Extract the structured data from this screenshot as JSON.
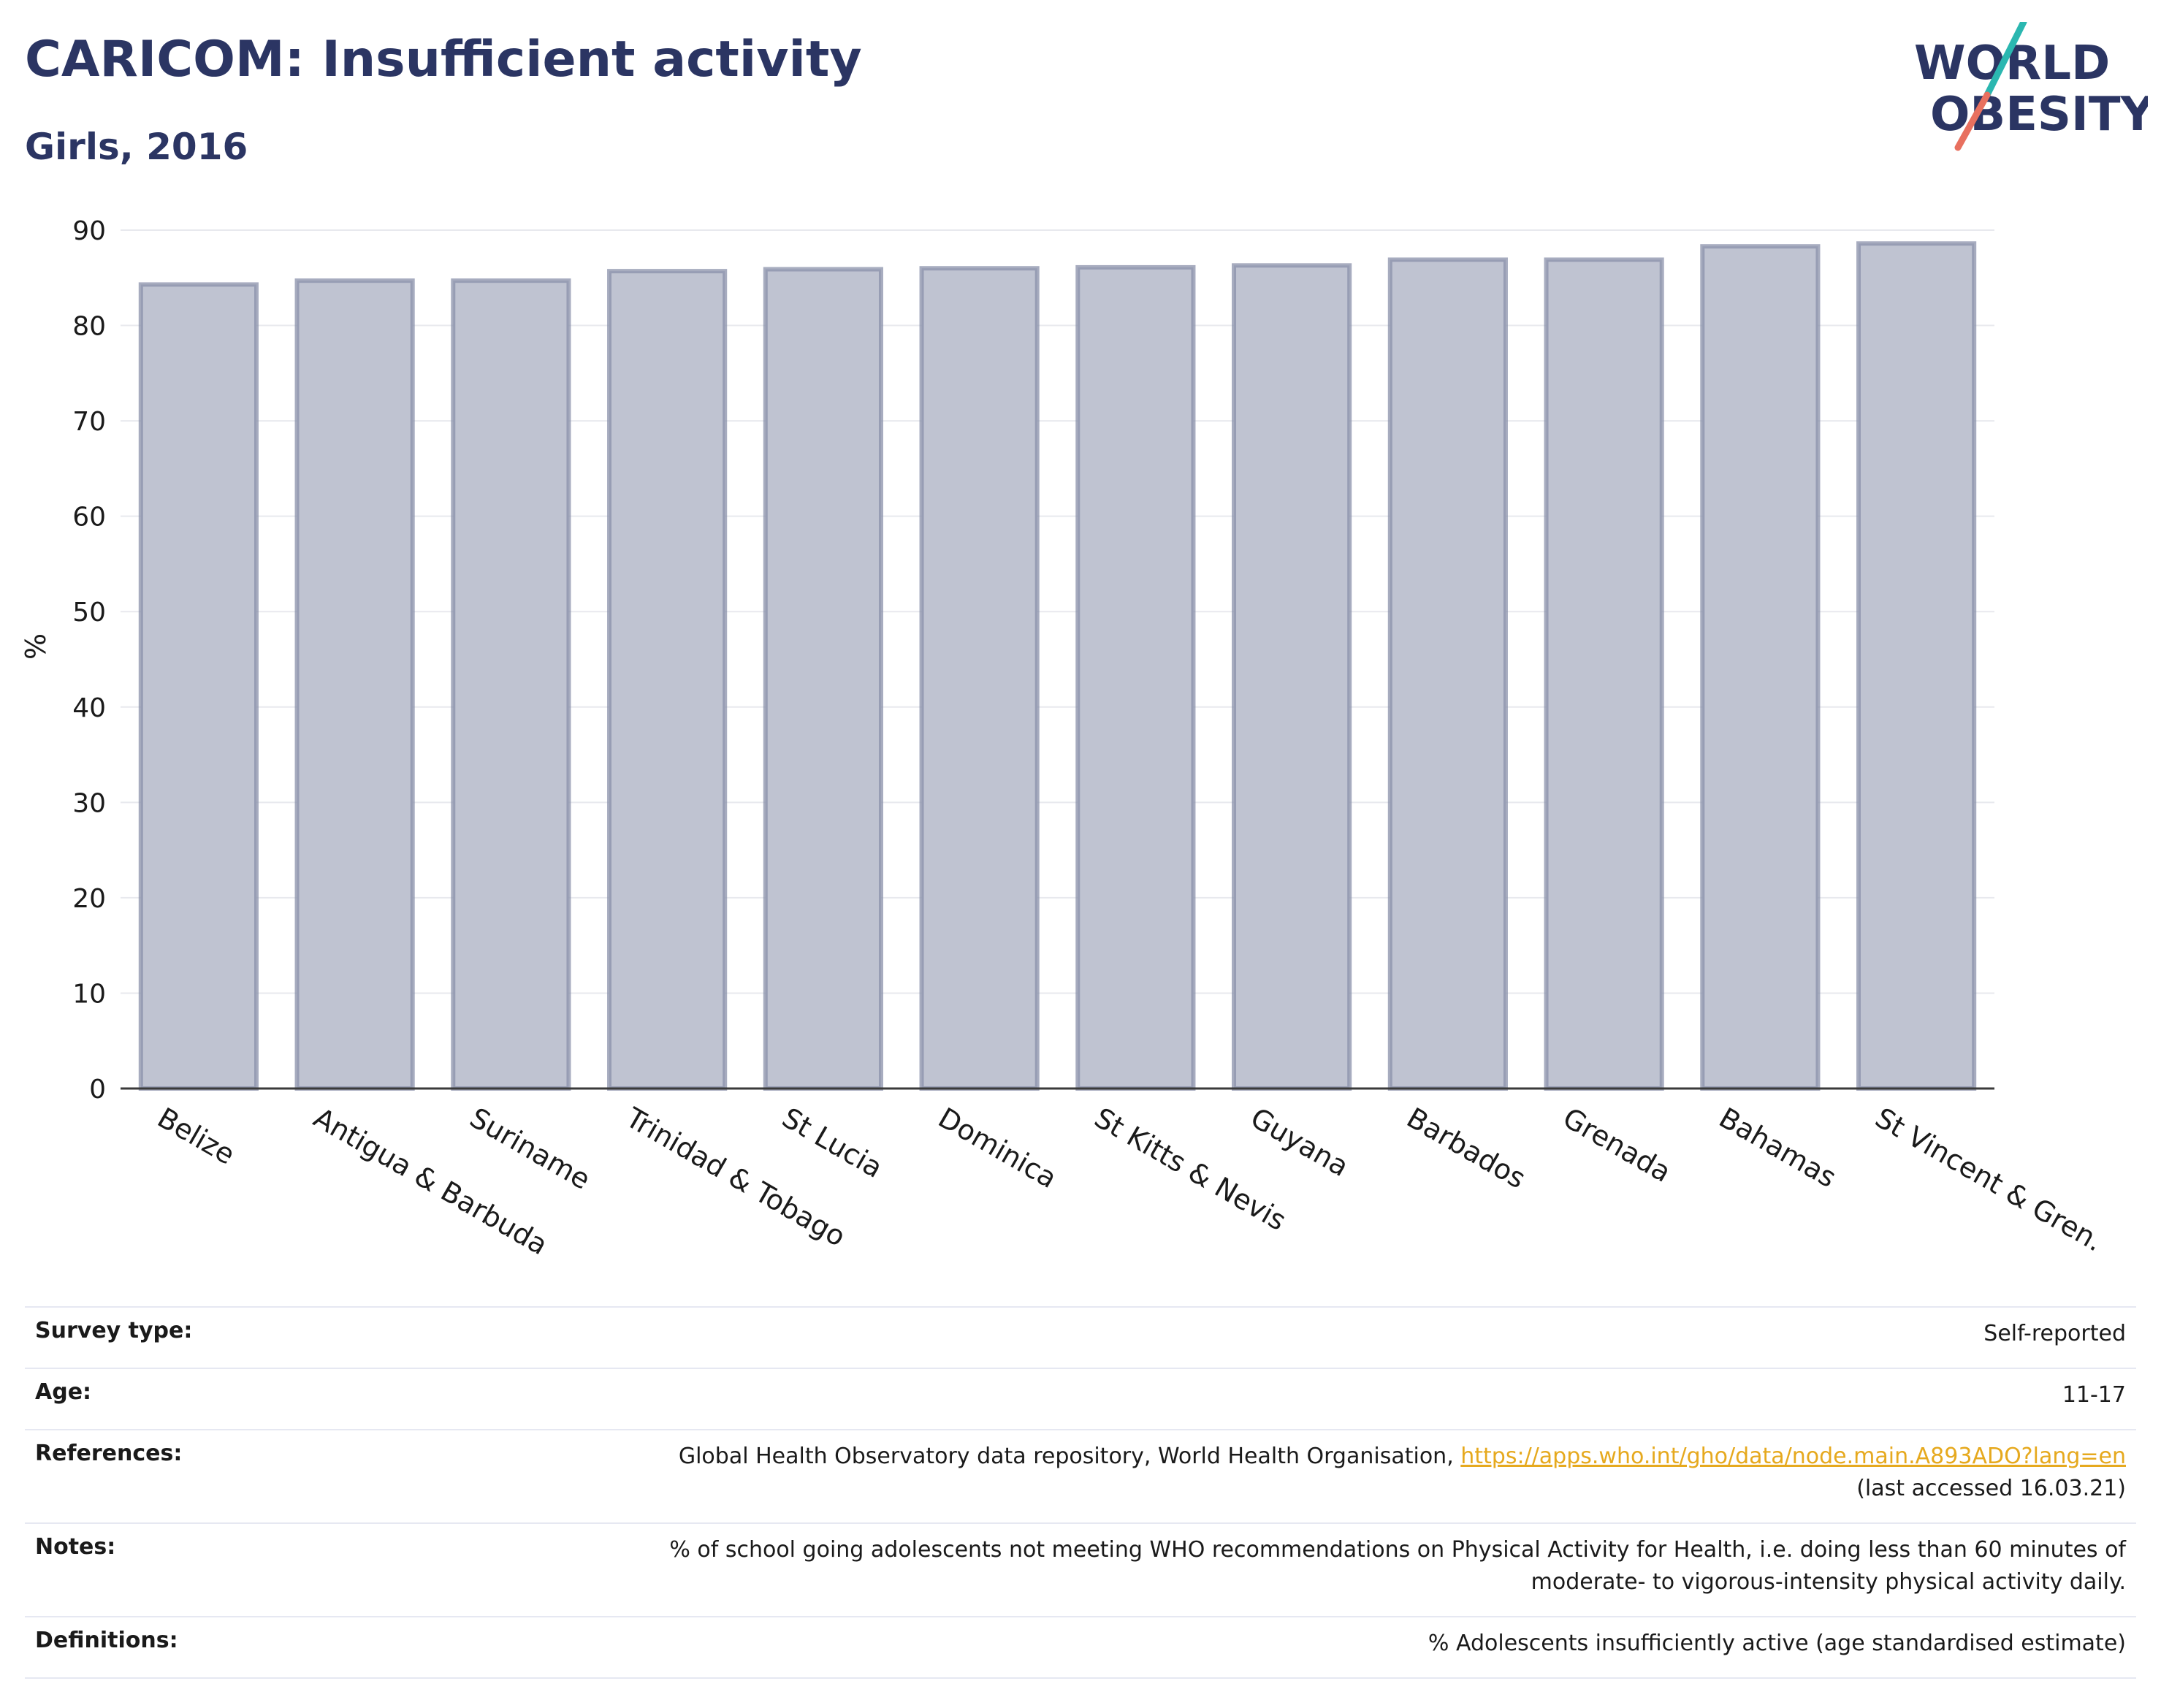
{
  "header": {
    "title": "CARICOM: Insufficient activity",
    "subtitle": "Girls, 2016"
  },
  "logo": {
    "line1": "WORLD",
    "line2": "OBESITY",
    "color_text": "#2b3563",
    "color_slash_top": "#2bb7b0",
    "color_slash_bottom": "#e8705f"
  },
  "chart_data": {
    "type": "bar",
    "title": "CARICOM: Insufficient activity",
    "subtitle": "Girls, 2016",
    "categories": [
      "Belize",
      "Antigua & Barbuda",
      "Suriname",
      "Trinidad & Tobago",
      "St Lucia",
      "Dominica",
      "St Kitts & Nevis",
      "Guyana",
      "Barbados",
      "Grenada",
      "Bahamas",
      "St Vincent & Gren."
    ],
    "values": [
      84.3,
      84.7,
      84.7,
      85.7,
      85.9,
      86.0,
      86.1,
      86.3,
      86.9,
      86.9,
      88.3,
      88.6
    ],
    "xlabel": "",
    "ylabel": "%",
    "ylim": [
      0,
      90
    ],
    "yticks": [
      0,
      10,
      20,
      30,
      40,
      50,
      60,
      70,
      80,
      90
    ],
    "grid": true,
    "legend": "none",
    "bar_fill": "#bfc3d1",
    "bar_stroke": "#8a90aa"
  },
  "meta": {
    "survey_type_label": "Survey type:",
    "survey_type_value": "Self-reported",
    "age_label": "Age:",
    "age_value": "11-17",
    "references_label": "References:",
    "references_text": "Global Health Observatory data repository, World Health Organisation, ",
    "references_link": "https://apps.who.int/gho/data/node.main.A893ADO?lang=en",
    "references_accessed": "(last accessed 16.03.21)",
    "notes_label": "Notes:",
    "notes_line1": "% of school going adolescents not meeting WHO recommendations on Physical Activity for Health, i.e. doing less than 60 minutes of",
    "notes_line2": "moderate- to vigorous-intensity physical activity daily.",
    "definitions_label": "Definitions:",
    "definitions_value": "% Adolescents insufficiently active (age standardised estimate)"
  }
}
